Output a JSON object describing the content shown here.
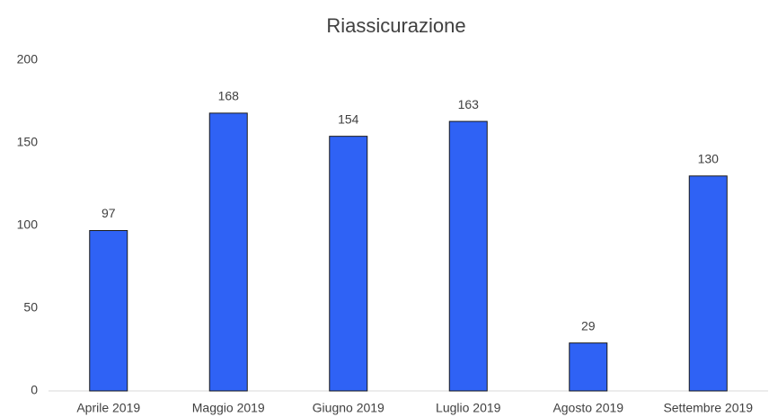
{
  "chart_data": {
    "type": "bar",
    "title": "Riassicurazione",
    "categories": [
      "Aprile 2019",
      "Maggio 2019",
      "Giugno 2019",
      "Luglio 2019",
      "Agosto 2019",
      "Settembre 2019"
    ],
    "values": [
      97,
      168,
      154,
      163,
      29,
      130
    ],
    "color": "#2f62f5",
    "ylim": [
      0,
      200
    ],
    "yticks": [
      0,
      50,
      100,
      150,
      200
    ],
    "grid": false
  }
}
